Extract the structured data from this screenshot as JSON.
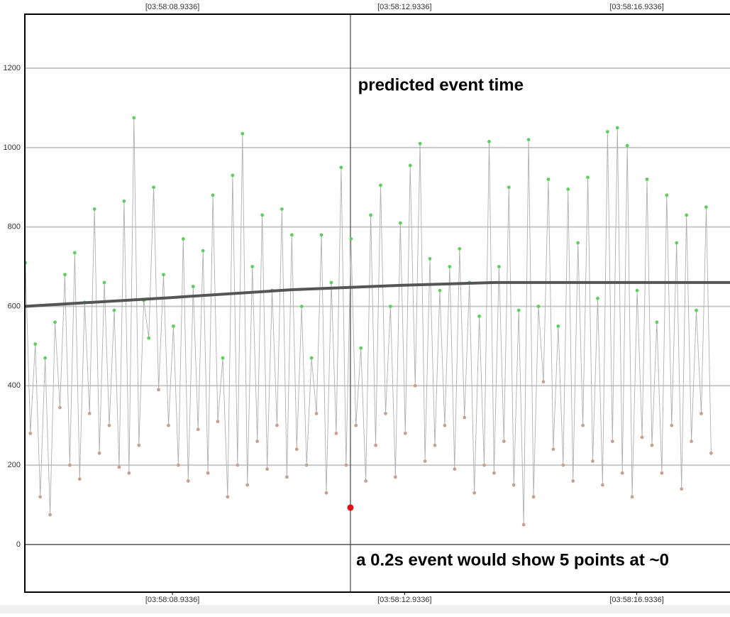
{
  "chart_data": {
    "type": "line",
    "xlim": [
      6.39,
      18.54
    ],
    "ylim": [
      -120,
      1336
    ],
    "xticks": [
      {
        "value": 8.9336,
        "label": "[03:58:08.9336]"
      },
      {
        "value": 12.9336,
        "label": "[03:58:12.9336]"
      },
      {
        "value": 16.9336,
        "label": "[03:58:16.9336]"
      }
    ],
    "yticks": [
      0,
      200,
      400,
      600,
      800,
      1000,
      1200
    ],
    "grid": true,
    "series": [
      {
        "color": "#b0b0b0",
        "marker_palette": [
          "#5ecf5e",
          "#c9a08f"
        ],
        "x": [
          6.4,
          6.485,
          6.57,
          6.655,
          6.74,
          6.825,
          6.91,
          6.995,
          7.08,
          7.165,
          7.25,
          7.335,
          7.42,
          7.505,
          7.59,
          7.675,
          7.76,
          7.845,
          7.93,
          8.015,
          8.1,
          8.185,
          8.27,
          8.355,
          8.44,
          8.525,
          8.61,
          8.695,
          8.78,
          8.865,
          8.95,
          9.035,
          9.12,
          9.205,
          9.29,
          9.375,
          9.46,
          9.545,
          9.63,
          9.715,
          9.8,
          9.885,
          9.97,
          10.055,
          10.14,
          10.225,
          10.31,
          10.395,
          10.48,
          10.565,
          10.65,
          10.735,
          10.82,
          10.905,
          10.99,
          11.075,
          11.16,
          11.245,
          11.33,
          11.415,
          11.5,
          11.585,
          11.67,
          11.755,
          11.84,
          11.925,
          12.01,
          12.095,
          12.18,
          12.265,
          12.35,
          12.435,
          12.52,
          12.605,
          12.69,
          12.775,
          12.86,
          12.945,
          13.03,
          13.115,
          13.2,
          13.285,
          13.37,
          13.455,
          13.54,
          13.625,
          13.71,
          13.795,
          13.88,
          13.965,
          14.05,
          14.135,
          14.22,
          14.305,
          14.39,
          14.475,
          14.56,
          14.645,
          14.73,
          14.815,
          14.9,
          14.985,
          15.07,
          15.155,
          15.24,
          15.325,
          15.41,
          15.495,
          15.58,
          15.665,
          15.75,
          15.835,
          15.92,
          16.005,
          16.09,
          16.175,
          16.26,
          16.345,
          16.43,
          16.515,
          16.6,
          16.685,
          16.77,
          16.855,
          16.94,
          17.025,
          17.11,
          17.195,
          17.28,
          17.365,
          17.45,
          17.535,
          17.62,
          17.705,
          17.79,
          17.875,
          17.96,
          18.045,
          18.13,
          18.215
        ],
        "values": [
          710,
          280,
          505,
          120,
          470,
          75,
          560,
          345,
          680,
          200,
          735,
          165,
          610,
          330,
          845,
          230,
          660,
          300,
          590,
          195,
          865,
          180,
          1075,
          250,
          615,
          520,
          900,
          390,
          680,
          300,
          550,
          200,
          770,
          160,
          650,
          290,
          740,
          180,
          880,
          310,
          470,
          120,
          930,
          200,
          1035,
          150,
          700,
          260,
          830,
          190,
          640,
          300,
          845,
          170,
          780,
          240,
          600,
          200,
          470,
          330,
          780,
          130,
          660,
          280,
          950,
          200,
          770,
          300,
          495,
          160,
          830,
          250,
          905,
          330,
          600,
          170,
          810,
          280,
          955,
          400,
          1010,
          210,
          720,
          250,
          640,
          300,
          700,
          190,
          745,
          320,
          660,
          130,
          575,
          200,
          1015,
          180,
          700,
          260,
          900,
          150,
          590,
          50,
          1020,
          120,
          600,
          410,
          920,
          240,
          550,
          200,
          895,
          160,
          760,
          300,
          925,
          210,
          620,
          150,
          1040,
          260,
          1050,
          180,
          1005,
          120,
          640,
          270,
          920,
          250,
          560,
          180,
          880,
          300,
          760,
          140,
          830,
          260,
          590,
          330,
          850,
          230
        ],
        "marker_color_index": [
          0,
          1,
          0,
          1,
          0,
          1,
          0,
          1,
          0,
          1,
          0,
          1,
          0,
          1,
          0,
          1,
          0,
          1,
          0,
          1,
          0,
          1,
          0,
          1,
          0,
          0,
          0,
          1,
          0,
          1,
          0,
          1,
          0,
          1,
          0,
          1,
          0,
          1,
          0,
          1,
          0,
          1,
          0,
          1,
          0,
          1,
          0,
          1,
          0,
          1,
          0,
          1,
          0,
          1,
          0,
          1,
          0,
          1,
          0,
          1,
          0,
          1,
          0,
          1,
          0,
          1,
          0,
          1,
          0,
          1,
          0,
          1,
          0,
          1,
          0,
          1,
          0,
          1,
          0,
          1,
          0,
          1,
          0,
          1,
          0,
          1,
          0,
          1,
          0,
          1,
          0,
          1,
          0,
          1,
          0,
          1,
          0,
          1,
          0,
          1,
          0,
          1,
          0,
          1,
          0,
          1,
          0,
          1,
          0,
          1,
          0,
          1,
          0,
          1,
          0,
          1,
          0,
          1,
          0,
          1,
          0,
          1,
          0,
          1,
          0,
          1,
          0,
          1,
          0,
          1,
          0,
          1,
          0,
          1,
          0,
          1,
          0,
          1,
          0,
          1
        ]
      },
      {
        "color": "#555555",
        "x": [
          6.39,
          8.9,
          11,
          12.9,
          14.5,
          18.54
        ],
        "values": [
          600,
          622,
          642,
          653,
          660,
          660
        ]
      }
    ],
    "event": {
      "x": 12.0,
      "value": 93,
      "color": "#dd1111"
    },
    "annotations": [
      {
        "text": "predicted event time",
        "x": 12.13,
        "y": 1155
      },
      {
        "text": "a 0.2s event would show 5 points at ~0",
        "x": 12.1,
        "y": -42
      }
    ]
  }
}
